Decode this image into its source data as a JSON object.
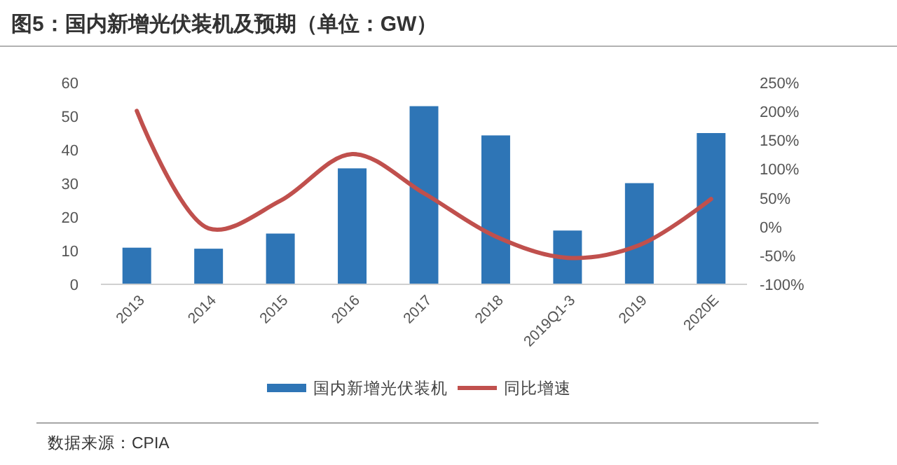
{
  "chart_data": {
    "type": "bar",
    "title": "图5：国内新增光伏装机及预期（单位：GW）",
    "categories": [
      "2013",
      "2014",
      "2015",
      "2016",
      "2017",
      "2018",
      "2019Q1-3",
      "2019",
      "2020E"
    ],
    "series": [
      {
        "name": "国内新增光伏装机",
        "color": "#2e75b6",
        "values": [
          10.9,
          10.6,
          15.1,
          34.5,
          53,
          44.3,
          16,
          30.1,
          45
        ]
      },
      {
        "name": "同比增速",
        "type": "line",
        "axis": "y2",
        "color": "#c0504d",
        "values": [
          201,
          -3,
          45,
          126,
          58,
          -17,
          -54,
          -32,
          48
        ]
      }
    ],
    "ylim": [
      0,
      60
    ],
    "yticks": [
      0,
      10,
      20,
      30,
      40,
      50,
      60
    ],
    "y2lim": [
      -100,
      250
    ],
    "y2ticks": [
      {
        "value": -100,
        "label": "-100%"
      },
      {
        "value": -50,
        "label": "-50%"
      },
      {
        "value": 0,
        "label": "0%"
      },
      {
        "value": 50,
        "label": "50%"
      },
      {
        "value": 100,
        "label": "100%"
      },
      {
        "value": 150,
        "label": "150%"
      },
      {
        "value": 200,
        "label": "200%"
      },
      {
        "value": 250,
        "label": "250%"
      }
    ],
    "legend": "bottom",
    "grid": false,
    "annotations": [
      "数据来源：CPIA"
    ]
  }
}
